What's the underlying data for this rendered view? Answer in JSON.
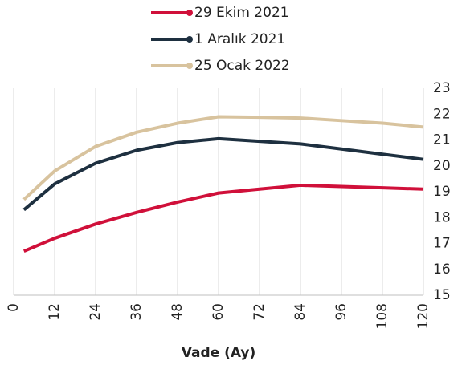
{
  "chart_data": {
    "type": "line",
    "x_label": "Vade (Ay)",
    "x": [
      3,
      12,
      24,
      36,
      48,
      60,
      72,
      84,
      96,
      108,
      120
    ],
    "series": [
      {
        "name": "29 Ekim 2021",
        "color": "#d0103a",
        "values": [
          16.7,
          17.2,
          17.75,
          18.2,
          18.6,
          18.95,
          19.1,
          19.25,
          19.2,
          19.15,
          19.1
        ]
      },
      {
        "name": "1 Aralık 2021",
        "color": "#1e3040",
        "values": [
          18.3,
          19.3,
          20.1,
          20.6,
          20.9,
          21.05,
          20.95,
          20.85,
          20.65,
          20.45,
          20.25
        ]
      },
      {
        "name": "25 Ocak 2022",
        "color": "#d8c39e",
        "values": [
          18.7,
          19.8,
          20.75,
          21.3,
          21.65,
          21.9,
          21.88,
          21.85,
          21.75,
          21.65,
          21.5
        ]
      }
    ],
    "xlim": [
      0,
      120
    ],
    "xticks": [
      0,
      12,
      24,
      36,
      48,
      60,
      72,
      84,
      96,
      108,
      120
    ],
    "ylim": [
      15,
      23
    ],
    "yticks": [
      15,
      16,
      17,
      18,
      19,
      20,
      21,
      22,
      23
    ],
    "grid": "x",
    "y_axis_side": "right",
    "legend": "top"
  }
}
